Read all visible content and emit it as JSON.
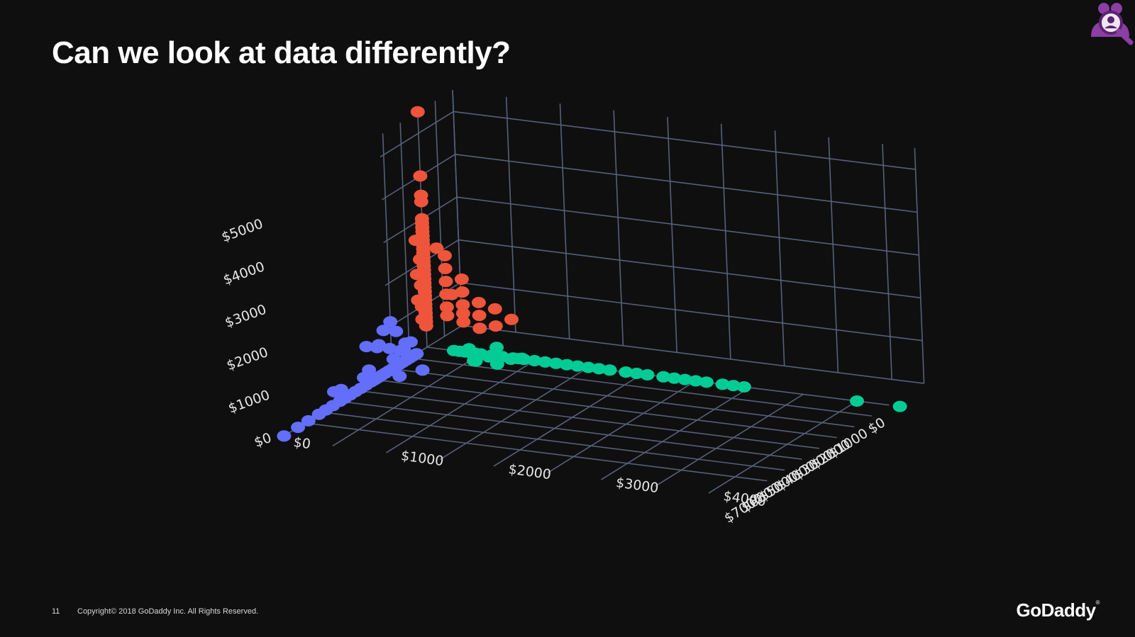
{
  "slide": {
    "title": "Can we look at data differently?",
    "page_number": "11",
    "copyright": "Copyright© 2018 GoDaddy Inc.   All Rights Reserved.",
    "brand": "GoDaddy",
    "brand_mark": "®"
  },
  "icons": {
    "presenter": "user-group-search-icon"
  },
  "colors": {
    "background": "#0f0f0f",
    "grid": "#56607a",
    "cluster_red": "#ee553b",
    "cluster_blue": "#636efa",
    "cluster_green": "#01cc96",
    "icon_purple": "#8b3ea3"
  },
  "chart_data": {
    "type": "scatter3d",
    "axes": {
      "x": {
        "ticks": [
          "$0",
          "$1000",
          "$2000",
          "$3000",
          "$4000",
          "$5000",
          "$6000",
          "$7000"
        ],
        "range": [
          0,
          7000
        ]
      },
      "y": {
        "ticks": [
          "$0",
          "$1000",
          "$2000",
          "$3000",
          "$4000"
        ],
        "range": [
          0,
          4000
        ]
      },
      "z": {
        "ticks": [
          "$0",
          "$1000",
          "$2000",
          "$3000",
          "$4000",
          "$5000"
        ],
        "range": [
          0,
          5000
        ]
      }
    },
    "grid": true,
    "series": [
      {
        "color": "#ee553b",
        "points": [
          [
            0,
            0,
            5500
          ],
          [
            0,
            0,
            4000
          ],
          [
            0,
            0,
            3550
          ],
          [
            0,
            0,
            3400
          ],
          [
            0,
            0,
            3000
          ],
          [
            0,
            0,
            2900
          ],
          [
            0,
            0,
            2800
          ],
          [
            0,
            0,
            2700
          ],
          [
            0,
            0,
            2600
          ],
          [
            0,
            0,
            2500
          ],
          [
            0,
            0,
            2400
          ],
          [
            0,
            0,
            2300
          ],
          [
            0,
            0,
            2200
          ],
          [
            0,
            0,
            2100
          ],
          [
            0,
            0,
            2000
          ],
          [
            0,
            0,
            1900
          ],
          [
            0,
            0,
            1800
          ],
          [
            0,
            0,
            1700
          ],
          [
            0,
            0,
            1600
          ],
          [
            0,
            0,
            1500
          ],
          [
            0,
            0,
            1400
          ],
          [
            0,
            0,
            1300
          ],
          [
            0,
            0,
            1200
          ],
          [
            0,
            0,
            1100
          ],
          [
            0,
            0,
            1000
          ],
          [
            0,
            0,
            900
          ],
          [
            0,
            0,
            800
          ],
          [
            0,
            0,
            700
          ],
          [
            0,
            0,
            600
          ],
          [
            0,
            0,
            500
          ],
          [
            0,
            200,
            2200
          ],
          [
            0,
            200,
            1900
          ],
          [
            0,
            200,
            1600
          ],
          [
            0,
            200,
            1300
          ],
          [
            0,
            200,
            1000
          ],
          [
            0,
            200,
            800
          ],
          [
            0,
            350,
            1700
          ],
          [
            0,
            350,
            1400
          ],
          [
            0,
            350,
            1100
          ],
          [
            0,
            350,
            900
          ],
          [
            0,
            350,
            700
          ],
          [
            0,
            500,
            1200
          ],
          [
            0,
            500,
            900
          ],
          [
            0,
            500,
            600
          ],
          [
            200,
            0,
            2100
          ],
          [
            200,
            0,
            1500
          ],
          [
            200,
            0,
            1000
          ],
          [
            200,
            0,
            700
          ],
          [
            400,
            0,
            2600
          ],
          [
            400,
            0,
            1800
          ],
          [
            400,
            0,
            1200
          ],
          [
            0,
            650,
            1100
          ],
          [
            0,
            650,
            700
          ],
          [
            0,
            800,
            900
          ],
          [
            300,
            300,
            1400
          ],
          [
            150,
            150,
            2400
          ]
        ]
      },
      {
        "color": "#636efa",
        "points": [
          [
            8200,
            0,
            0
          ],
          [
            7400,
            0,
            0
          ],
          [
            6800,
            0,
            0
          ],
          [
            6200,
            0,
            0
          ],
          [
            5800,
            0,
            0
          ],
          [
            5400,
            0,
            0
          ],
          [
            5000,
            0,
            0
          ],
          [
            4700,
            0,
            0
          ],
          [
            4400,
            0,
            0
          ],
          [
            4100,
            0,
            0
          ],
          [
            3800,
            0,
            0
          ],
          [
            3500,
            0,
            0
          ],
          [
            3200,
            0,
            0
          ],
          [
            3000,
            0,
            0
          ],
          [
            2800,
            0,
            0
          ],
          [
            2600,
            0,
            0
          ],
          [
            2400,
            0,
            0
          ],
          [
            2200,
            0,
            0
          ],
          [
            2000,
            0,
            0
          ],
          [
            1800,
            0,
            0
          ],
          [
            1600,
            0,
            0
          ],
          [
            1400,
            0,
            0
          ],
          [
            1200,
            0,
            0
          ],
          [
            1000,
            0,
            0
          ],
          [
            800,
            0,
            0
          ],
          [
            600,
            0,
            0
          ],
          [
            5300,
            0,
            300
          ],
          [
            4900,
            0,
            250
          ],
          [
            3600,
            0,
            200
          ],
          [
            3300,
            0,
            300
          ],
          [
            2100,
            0,
            500
          ],
          [
            2500,
            150,
            0
          ],
          [
            1900,
            0,
            200
          ],
          [
            1500,
            0,
            300
          ],
          [
            1200,
            0,
            400
          ],
          [
            900,
            0,
            350
          ],
          [
            1800,
            250,
            0
          ],
          [
            2000,
            0,
            1100
          ],
          [
            1700,
            0,
            800
          ],
          [
            2400,
            0,
            1000
          ],
          [
            1000,
            -300,
            150
          ],
          [
            600,
            -350,
            100
          ],
          [
            400,
            -150,
            0
          ],
          [
            700,
            -450,
            50
          ]
        ]
      },
      {
        "color": "#01cc96",
        "points": [
          [
            0,
            4400,
            0
          ],
          [
            0,
            4000,
            0
          ],
          [
            0,
            2950,
            0
          ],
          [
            0,
            2850,
            0
          ],
          [
            0,
            2750,
            0
          ],
          [
            0,
            2600,
            0
          ],
          [
            0,
            2500,
            0
          ],
          [
            0,
            2400,
            0
          ],
          [
            0,
            2300,
            0
          ],
          [
            0,
            2200,
            0
          ],
          [
            0,
            2050,
            0
          ],
          [
            0,
            1950,
            0
          ],
          [
            0,
            1850,
            0
          ],
          [
            0,
            1700,
            0
          ],
          [
            0,
            1600,
            0
          ],
          [
            0,
            1500,
            0
          ],
          [
            0,
            1400,
            0
          ],
          [
            0,
            1300,
            0
          ],
          [
            0,
            1200,
            0
          ],
          [
            0,
            1100,
            0
          ],
          [
            0,
            1000,
            0
          ],
          [
            0,
            900,
            0
          ],
          [
            0,
            850,
            0
          ],
          [
            0,
            800,
            0
          ],
          [
            0,
            700,
            0
          ],
          [
            0,
            650,
            0
          ],
          [
            0,
            600,
            0
          ],
          [
            0,
            500,
            0
          ],
          [
            0,
            450,
            0
          ],
          [
            0,
            400,
            0
          ],
          [
            0,
            350,
            0
          ],
          [
            0,
            300,
            0
          ],
          [
            0,
            250,
            0
          ],
          [
            150,
            600,
            0
          ],
          [
            120,
            800,
            0
          ],
          [
            200,
            500,
            0
          ],
          [
            300,
            700,
            -100
          ],
          [
            0,
            650,
            200
          ],
          [
            100,
            900,
            50
          ],
          [
            100,
            450,
            -150
          ],
          [
            600,
            550,
            0
          ],
          [
            50,
            400,
            100
          ]
        ]
      }
    ]
  }
}
